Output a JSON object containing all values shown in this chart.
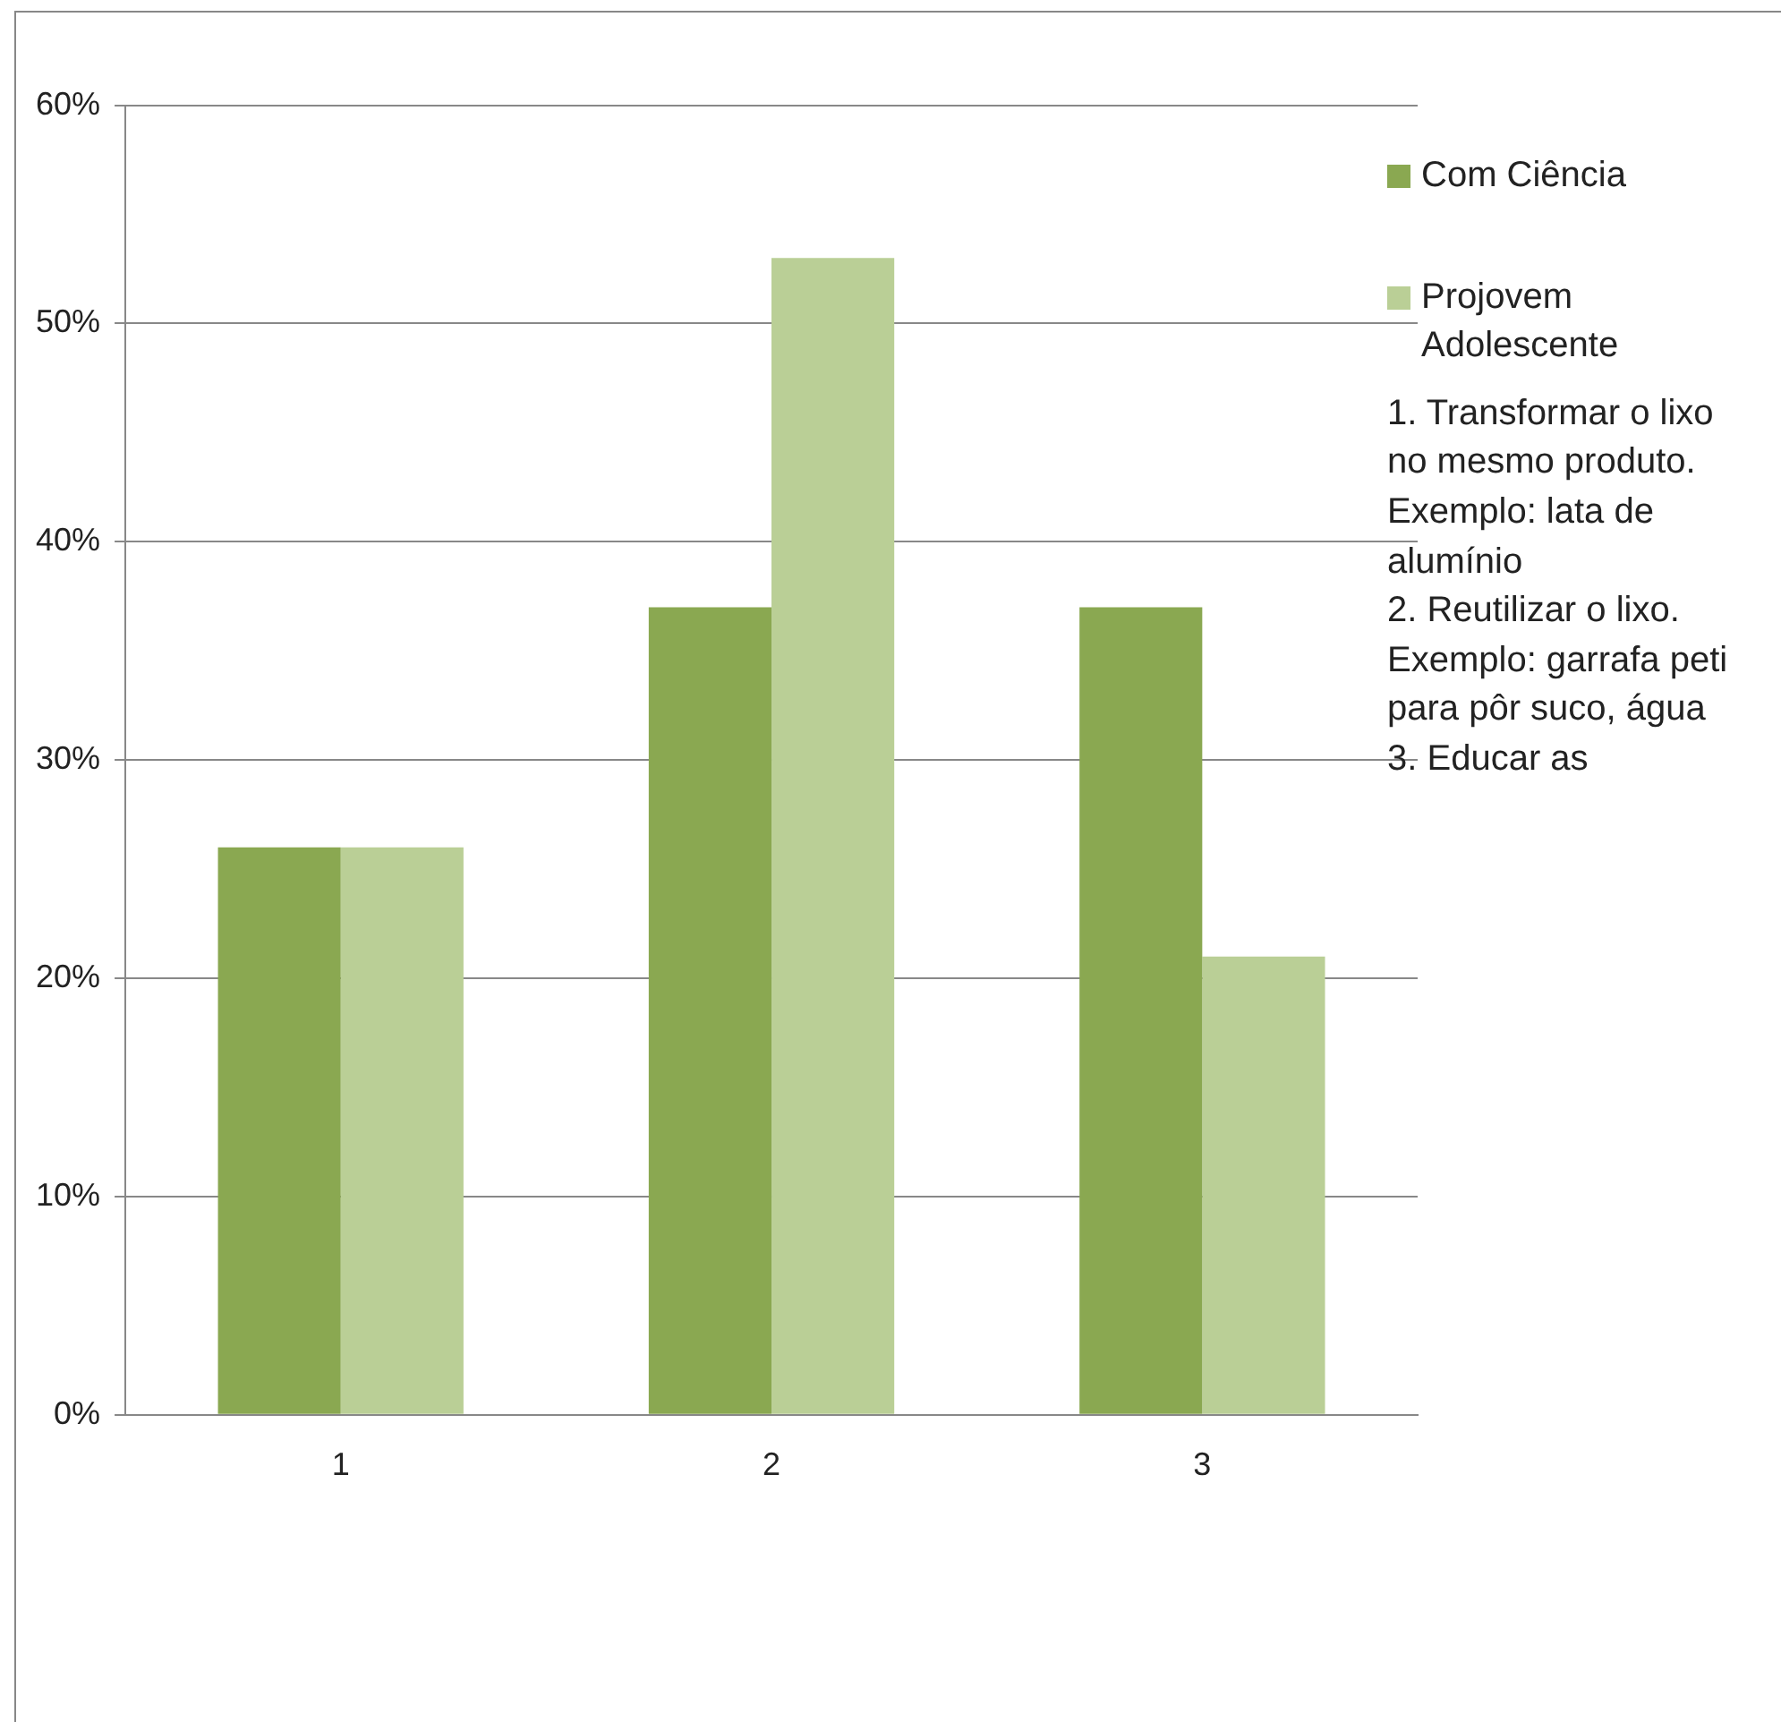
{
  "chart_data": {
    "type": "bar",
    "categories": [
      "1",
      "2",
      "3"
    ],
    "series": [
      {
        "name": "Com Ciência",
        "color": "#8aa851",
        "values": [
          26,
          37,
          37
        ]
      },
      {
        "name": "Projovem Adolescente",
        "color": "#bacf96",
        "values": [
          26,
          53,
          21
        ]
      }
    ],
    "ylim": [
      0,
      60
    ],
    "yticks": [
      {
        "value": 0,
        "label": "0%"
      },
      {
        "value": 10,
        "label": "10%"
      },
      {
        "value": 20,
        "label": "20%"
      },
      {
        "value": 30,
        "label": "30%"
      },
      {
        "value": 40,
        "label": "40%"
      },
      {
        "value": 50,
        "label": "50%"
      },
      {
        "value": 60,
        "label": "60%"
      }
    ],
    "grid": "y",
    "legend": "right",
    "annotations": [
      "1. Transformar o lixo no mesmo produto. Exemplo: lata de alumínio",
      "2. Reutilizar o lixo. Exemplo: garrafa peti para pôr suco, água",
      "3. Educar as"
    ]
  }
}
